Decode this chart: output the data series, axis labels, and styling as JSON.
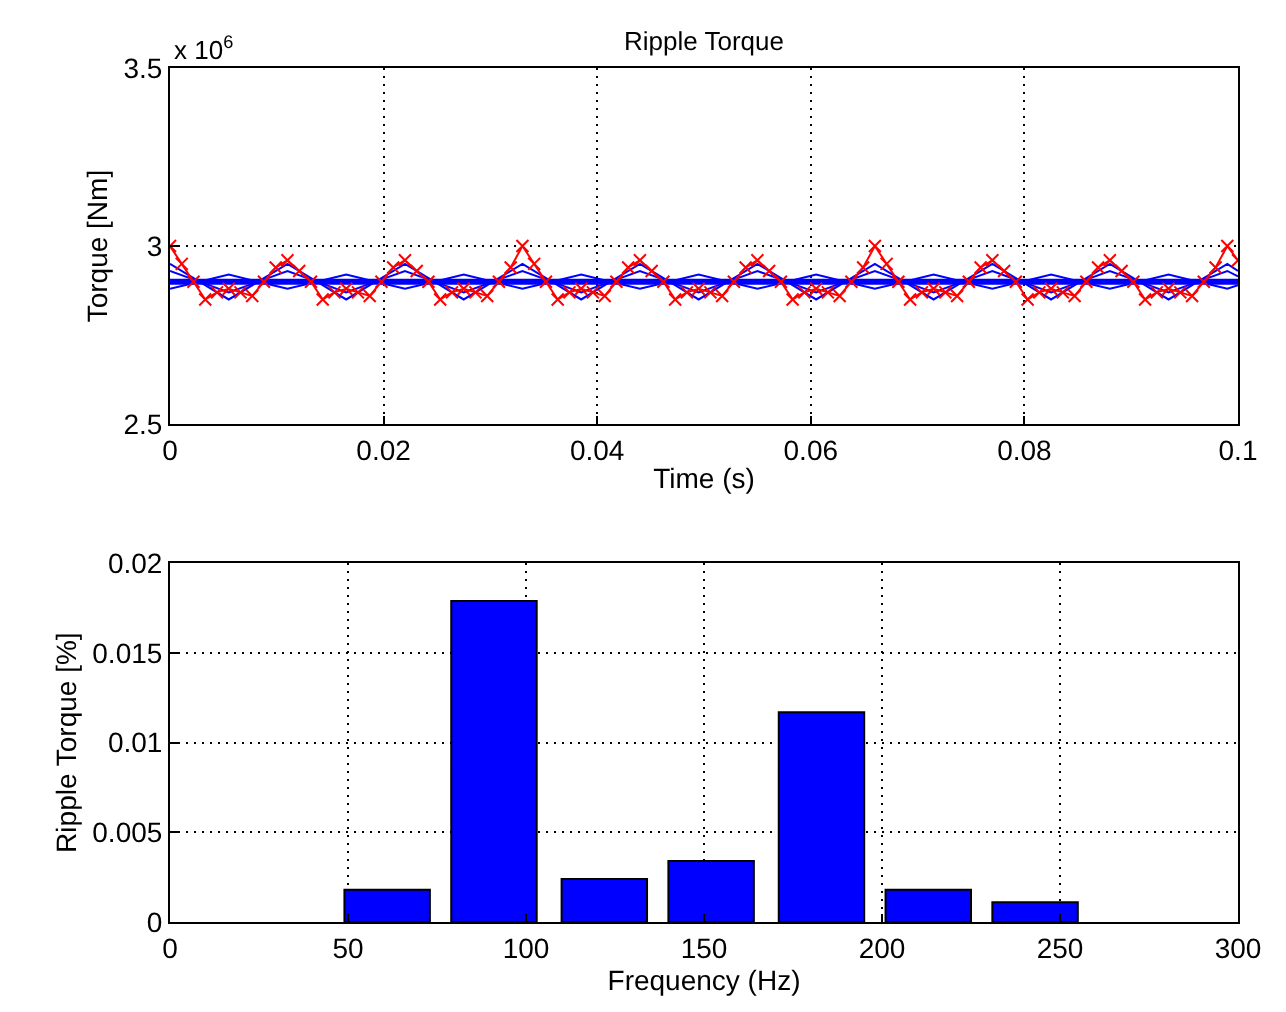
{
  "chart_data": [
    {
      "type": "line",
      "title": "Ripple Torque",
      "xlabel": "Time (s)",
      "ylabel": "Torque [Nm]",
      "annotations": [
        "x 10$^{6}$"
      ],
      "x": [
        0,
        0.00275,
        0.0055,
        0.00825,
        0.011,
        0.01375,
        0.0165,
        0.01925,
        0.022,
        0.02475,
        0.0275,
        0.03025,
        0.033,
        0.03575,
        0.0385,
        0.04125,
        0.044,
        0.04675,
        0.0495,
        0.05225,
        0.055,
        0.05775,
        0.0605,
        0.06325,
        0.066,
        0.06875,
        0.0715,
        0.07425,
        0.077,
        0.07975,
        0.0825,
        0.08525,
        0.088,
        0.09075,
        0.0935,
        0.09625,
        0.099,
        0.1
      ],
      "series": [
        {
          "color": "#0000ff",
          "marker": "none",
          "values": [
            2.95,
            2.9,
            2.85,
            2.9,
            2.95,
            2.9,
            2.85,
            2.9,
            2.95,
            2.9,
            2.85,
            2.9,
            2.95,
            2.9,
            2.85,
            2.9,
            2.95,
            2.9,
            2.85,
            2.9,
            2.95,
            2.9,
            2.85,
            2.9,
            2.95,
            2.9,
            2.85,
            2.9,
            2.95,
            2.9,
            2.85,
            2.9,
            2.95,
            2.9,
            2.85,
            2.9,
            2.95,
            2.93
          ]
        },
        {
          "color": "#0000ff",
          "marker": "none",
          "values": [
            2.93,
            2.9,
            2.87,
            2.9,
            2.93,
            2.9,
            2.87,
            2.9,
            2.93,
            2.9,
            2.87,
            2.9,
            2.93,
            2.9,
            2.87,
            2.9,
            2.93,
            2.9,
            2.87,
            2.9,
            2.93,
            2.9,
            2.87,
            2.9,
            2.93,
            2.9,
            2.87,
            2.9,
            2.93,
            2.9,
            2.87,
            2.9,
            2.93,
            2.9,
            2.87,
            2.9,
            2.93,
            2.915
          ]
        },
        {
          "color": "#0000ff",
          "marker": "none",
          "values": [
            2.88,
            2.9,
            2.92,
            2.9,
            2.88,
            2.9,
            2.92,
            2.9,
            2.88,
            2.9,
            2.92,
            2.9,
            2.88,
            2.9,
            2.92,
            2.9,
            2.88,
            2.9,
            2.92,
            2.9,
            2.88,
            2.9,
            2.92,
            2.9,
            2.88,
            2.9,
            2.92,
            2.9,
            2.88,
            2.9,
            2.92,
            2.9,
            2.88,
            2.9,
            2.92,
            2.9,
            2.88,
            2.89
          ]
        },
        {
          "color": "#0000ff",
          "marker": "none",
          "x": [
            0,
            0.1
          ],
          "values": [
            2.9,
            2.9
          ]
        },
        {
          "color": "#ff0000",
          "marker": "cross",
          "x": [
            0,
            0.0011,
            0.0022,
            0.0033,
            0.0044,
            0.0055,
            0.0066,
            0.0077,
            0.0088,
            0.0099,
            0.011,
            0.0121,
            0.0132,
            0.0143,
            0.0154,
            0.0165,
            0.0176,
            0.0187,
            0.0198,
            0.0209,
            0.022,
            0.0231,
            0.0242,
            0.0253,
            0.0264,
            0.0275,
            0.0286,
            0.0297,
            0.0308,
            0.0319,
            0.033,
            0.0341,
            0.0352,
            0.0363,
            0.0374,
            0.0385,
            0.0396,
            0.0407,
            0.0418,
            0.0429,
            0.044,
            0.0451,
            0.0462,
            0.0473,
            0.0484,
            0.0495,
            0.0506,
            0.0517,
            0.0528,
            0.0539,
            0.055,
            0.0561,
            0.0572,
            0.0583,
            0.0594,
            0.0605,
            0.0616,
            0.0627,
            0.0638,
            0.0649,
            0.066,
            0.0671,
            0.0682,
            0.0693,
            0.0704,
            0.0715,
            0.0726,
            0.0737,
            0.0748,
            0.0759,
            0.077,
            0.0781,
            0.0792,
            0.0803,
            0.0814,
            0.0825,
            0.0836,
            0.0847,
            0.0858,
            0.0869,
            0.088,
            0.0891,
            0.0902,
            0.0913,
            0.0924,
            0.0935,
            0.0946,
            0.0957,
            0.0968,
            0.0979,
            0.099,
            0.1
          ],
          "values": [
            3.0,
            2.95,
            2.9,
            2.85,
            2.87,
            2.88,
            2.87,
            2.86,
            2.9,
            2.94,
            2.96,
            2.93,
            2.9,
            2.85,
            2.87,
            2.88,
            2.87,
            2.86,
            2.9,
            2.94,
            2.96,
            2.93,
            2.9,
            2.85,
            2.87,
            2.88,
            2.87,
            2.86,
            2.9,
            2.94,
            3.0,
            2.95,
            2.9,
            2.85,
            2.87,
            2.88,
            2.87,
            2.86,
            2.9,
            2.94,
            2.96,
            2.93,
            2.9,
            2.85,
            2.87,
            2.88,
            2.87,
            2.86,
            2.9,
            2.94,
            2.96,
            2.93,
            2.9,
            2.85,
            2.87,
            2.88,
            2.87,
            2.86,
            2.9,
            2.94,
            3.0,
            2.95,
            2.9,
            2.85,
            2.87,
            2.88,
            2.87,
            2.86,
            2.9,
            2.94,
            2.96,
            2.93,
            2.9,
            2.85,
            2.87,
            2.88,
            2.87,
            2.86,
            2.9,
            2.94,
            2.96,
            2.93,
            2.9,
            2.85,
            2.87,
            2.88,
            2.87,
            2.86,
            2.9,
            2.94,
            3.0,
            2.96
          ]
        }
      ],
      "xlim": [
        0,
        0.1
      ],
      "xticks": [
        0,
        0.02,
        0.04,
        0.06,
        0.08,
        0.1
      ],
      "ylim": [
        2.5,
        3.5
      ],
      "yticks": [
        2.5,
        3,
        3.5
      ],
      "grid": true,
      "line_style": "solid"
    },
    {
      "type": "bar",
      "xlabel": "Frequency (Hz)",
      "ylabel": "Ripple Torque [%]",
      "x": [
        61,
        91,
        122,
        152,
        183,
        213,
        243
      ],
      "series": [
        {
          "color": "#0000ff",
          "values": [
            0.0018,
            0.0179,
            0.0024,
            0.0034,
            0.0117,
            0.0018,
            0.0011
          ]
        }
      ],
      "xlim": [
        0,
        300
      ],
      "xticks": [
        0,
        50,
        100,
        150,
        200,
        250,
        300
      ],
      "ylim": [
        0,
        0.02
      ],
      "yticks": [
        0,
        0.005,
        0.01,
        0.015,
        0.02
      ],
      "grid": true
    }
  ]
}
